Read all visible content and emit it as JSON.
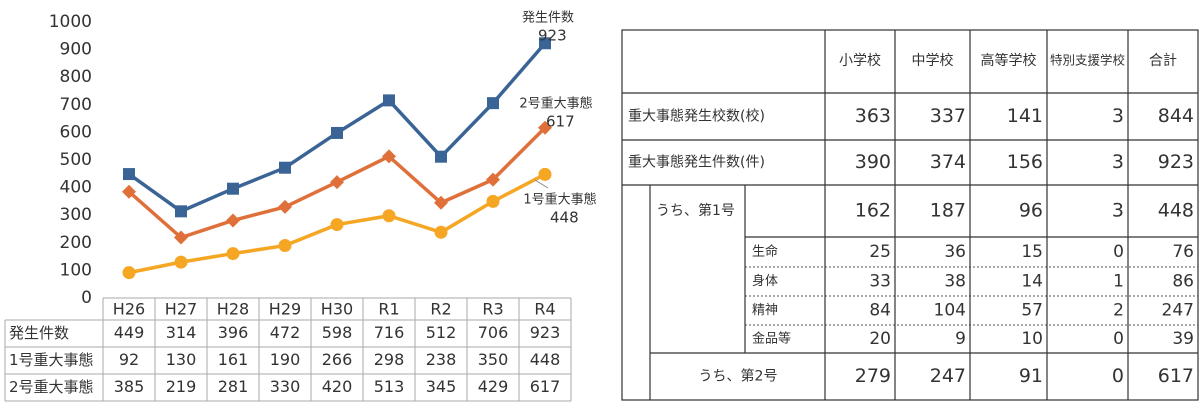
{
  "chart_data": {
    "type": "line",
    "categories": [
      "H26",
      "H27",
      "H28",
      "H29",
      "H30",
      "R1",
      "R2",
      "R3",
      "R4"
    ],
    "series": [
      {
        "name": "発生件数",
        "color": "#3b6496",
        "marker": "square",
        "values": [
          449,
          314,
          396,
          472,
          598,
          716,
          512,
          706,
          923
        ]
      },
      {
        "name": "1号重大事態",
        "color": "#f5a623",
        "marker": "circle",
        "values": [
          92,
          130,
          161,
          190,
          266,
          298,
          238,
          350,
          448
        ]
      },
      {
        "name": "2号重大事態",
        "color": "#e0703a",
        "marker": "diamond",
        "values": [
          385,
          219,
          281,
          330,
          420,
          513,
          345,
          429,
          617
        ]
      }
    ],
    "ylim": [
      0,
      1000
    ],
    "yticks": [
      0,
      100,
      200,
      300,
      400,
      500,
      600,
      700,
      800,
      900,
      1000
    ],
    "grid": false
  },
  "table": {
    "columns": [
      "小学校",
      "中学校",
      "高等学校",
      "特別支援学校",
      "合計"
    ],
    "rows": [
      {
        "label": "重大事態発生校数(校)",
        "values": [
          363,
          337,
          141,
          3,
          844
        ]
      },
      {
        "label": "重大事態発生件数(件)",
        "values": [
          390,
          374,
          156,
          3,
          923
        ]
      },
      {
        "label": "うち、第1号",
        "values": [
          162,
          187,
          96,
          3,
          448
        ]
      },
      {
        "label": "生命",
        "values": [
          25,
          36,
          15,
          0,
          76
        ]
      },
      {
        "label": "身体",
        "values": [
          33,
          38,
          14,
          1,
          86
        ]
      },
      {
        "label": "精神",
        "values": [
          84,
          104,
          57,
          2,
          247
        ]
      },
      {
        "label": "金品等",
        "values": [
          20,
          9,
          10,
          0,
          39
        ]
      },
      {
        "label": "うち、第2号",
        "values": [
          279,
          247,
          91,
          0,
          617
        ]
      }
    ]
  }
}
